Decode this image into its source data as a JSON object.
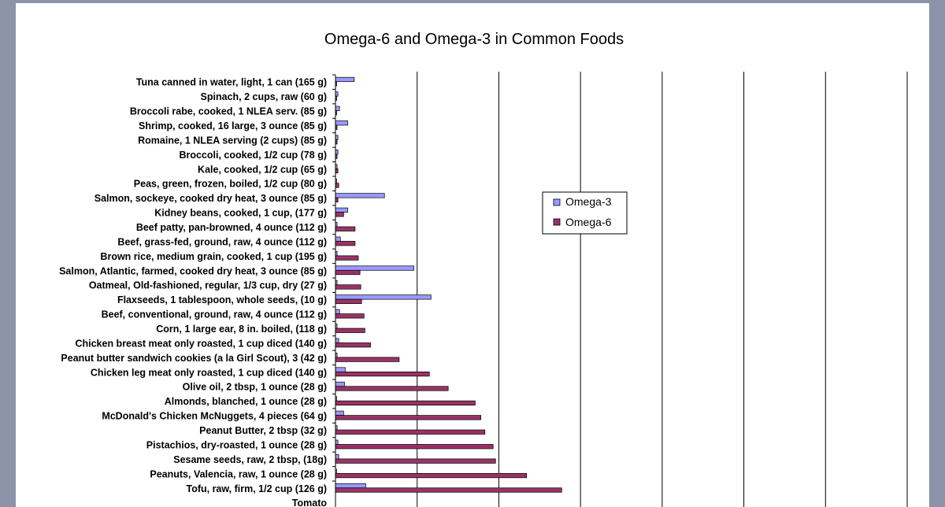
{
  "chart_data": {
    "type": "bar",
    "orientation": "horizontal",
    "title": "Omega-6 and Omega-3 in Common Foods",
    "xlabel": "",
    "ylabel": "",
    "xlim": [
      0,
      7
    ],
    "grid": "vertical",
    "legend_position": "right",
    "categories": [
      "Tuna canned in water, light, 1 can (165 g)",
      "Spinach, 2 cups, raw (60 g)",
      "Broccoli rabe, cooked, 1 NLEA serv. (85 g)",
      "Shrimp, cooked, 16 large, 3 ounce (85 g)",
      "Romaine, 1 NLEA serving (2 cups) (85 g)",
      "Broccoli, cooked, 1/2 cup (78 g)",
      "Kale, cooked, 1/2 cup (65 g)",
      "Peas, green, frozen, boiled, 1/2 cup (80 g)",
      "Salmon, sockeye, cooked dry heat, 3 ounce (85 g)",
      "Kidney beans, cooked, 1 cup, (177 g)",
      "Beef patty, pan-browned, 4 ounce (112 g)",
      "Beef, grass-fed, ground, raw, 4 ounce (112 g)",
      "Brown rice, medium grain, cooked, 1 cup (195 g)",
      "Salmon, Atlantic, farmed, cooked dry heat, 3 ounce (85 g)",
      "Oatmeal, Old-fashioned, regular, 1/3 cup, dry (27 g)",
      "Flaxseeds, 1 tablespoon, whole seeds, (10 g)",
      "Beef, conventional, ground, raw, 4 ounce (112 g)",
      "Corn, 1 large ear, 8 in. boiled, (118 g)",
      "Chicken breast meat only roasted, 1 cup diced (140 g)",
      "Peanut butter sandwich cookies (a la Girl Scout), 3 (42 g)",
      "Chicken leg meat only roasted, 1 cup diced (140 g)",
      "Olive oil, 2 tbsp, 1 ounce (28 g)",
      "Almonds, blanched, 1 ounce (28 g)",
      "McDonald's Chicken McNuggets, 4 pieces (64 g)",
      "Peanut Butter, 2 tbsp (32 g)",
      "Pistachios, dry-roasted, 1 ounce (28 g)",
      "Sesame seeds, raw, 2 tbsp, (18g)",
      "Peanuts, Valencia, raw, 1 ounce (28 g)",
      "Tofu, raw, firm, 1/2 cup (126 g)"
    ],
    "series": [
      {
        "name": "Omega-3",
        "color": "#9999ff",
        "values": [
          0.23,
          0.03,
          0.05,
          0.15,
          0.03,
          0.03,
          0.02,
          0.01,
          0.6,
          0.15,
          0.02,
          0.06,
          0.02,
          0.96,
          0.02,
          1.17,
          0.05,
          0.02,
          0.04,
          0.02,
          0.12,
          0.11,
          0.0,
          0.1,
          0.02,
          0.03,
          0.04,
          0.0,
          0.37
        ]
      },
      {
        "name": "Omega-6",
        "color": "#993366",
        "values": [
          0.01,
          0.01,
          0.01,
          0.02,
          0.02,
          0.02,
          0.03,
          0.04,
          0.03,
          0.1,
          0.24,
          0.24,
          0.28,
          0.3,
          0.31,
          0.32,
          0.35,
          0.36,
          0.43,
          0.78,
          1.15,
          1.38,
          1.71,
          1.78,
          1.83,
          1.93,
          1.96,
          2.34,
          2.77
        ]
      }
    ],
    "partial_category": "Tomato"
  }
}
